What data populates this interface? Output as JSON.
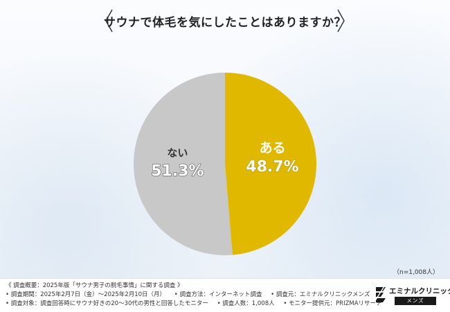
{
  "title": "サウナで体毛を気にしたことはありますか？",
  "sample_label": "（n=1,008人）",
  "chart_data": {
    "type": "pie",
    "title": "サウナで体毛を気にしたことはありますか？",
    "slices": [
      {
        "label": "ある",
        "value": 48.7,
        "display": "48.7%",
        "color": "#e0b800"
      },
      {
        "label": "ない",
        "value": 51.3,
        "display": "51.3%",
        "color": "#c8c8c8"
      }
    ],
    "start": "12 o'clock",
    "direction": "clockwise"
  },
  "footer": {
    "line1": "《 調査概要：2025年版「サウナ男子の脱毛事情」に関する調査 》",
    "line2_a": "• 調査期間：2025年2月7日（金）～2025年2月10日（月）",
    "line2_b": "• 調査方法：インターネット調査",
    "line2_c": "• 調査元：エミナルクリニックメンズ",
    "line3_a": "• 調査対象：調査回答時にサウナ好きの20～30代の男性と回答したモニター",
    "line3_b": "• 調査人数：1,008人",
    "line3_c": "• モニター提供元：PRIZMAリサーチ"
  },
  "brand": {
    "name": "エミナルクリニック",
    "sub": "メンズ"
  },
  "colors": {
    "yes": "#e0b800",
    "no": "#c8c8c8"
  }
}
